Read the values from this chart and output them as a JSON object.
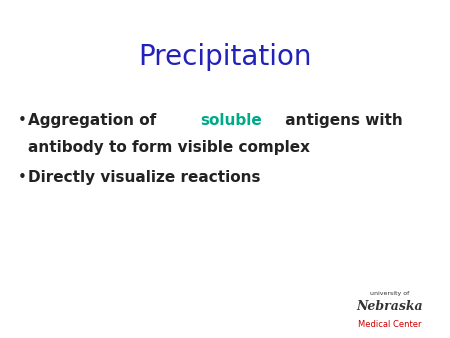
{
  "title": "Precipitation",
  "title_color": "#2222bb",
  "title_fontsize": 20,
  "background_color": "#ffffff",
  "bullet_color": "#222222",
  "bullet_fontsize": 11,
  "line1_parts": [
    {
      "text": "Aggregation of ",
      "color": "#222222"
    },
    {
      "text": "soluble",
      "color": "#00aa88"
    },
    {
      "text": " antigens with",
      "color": "#222222"
    }
  ],
  "line2": "antibody to form visible complex",
  "line2_color": "#222222",
  "line3": "Directly visualize reactions",
  "line3_color": "#222222",
  "logo_nebraska": "Nebraska",
  "logo_medical": "Medical Center",
  "logo_univ": "university of",
  "logo_color_dark": "#333333",
  "logo_color_red": "#cc0000"
}
